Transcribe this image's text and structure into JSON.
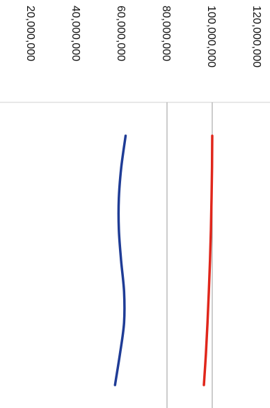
{
  "chart_data": {
    "type": "line",
    "title": "",
    "xlabel": "",
    "ylabel": "",
    "orientation": "rotated-90-clockwise",
    "ylim": [
      20000000,
      120000000
    ],
    "y_ticks": [
      {
        "value": 120000000,
        "label": "120,000,000"
      },
      {
        "value": 100000000,
        "label": "100,000,000"
      },
      {
        "value": 80000000,
        "label": "80,000,000"
      },
      {
        "value": 60000000,
        "label": "60,000,000"
      },
      {
        "value": 40000000,
        "label": "40,000,000"
      },
      {
        "value": 20000000,
        "label": "20,000,000"
      }
    ],
    "gridlines": [
      100000000,
      80000000
    ],
    "x": [
      0,
      1,
      2,
      3,
      4,
      5,
      6,
      7,
      8
    ],
    "series": [
      {
        "color": "#e0261b",
        "values": [
          100000000,
          99900000,
          99700000,
          99400000,
          99000000,
          98500000,
          97900000,
          97200000,
          96300000
        ]
      },
      {
        "color": "#1f3c96",
        "values": [
          61700000,
          59800000,
          58700000,
          58700000,
          59700000,
          61000000,
          61000000,
          59200000,
          57000000
        ]
      }
    ]
  }
}
